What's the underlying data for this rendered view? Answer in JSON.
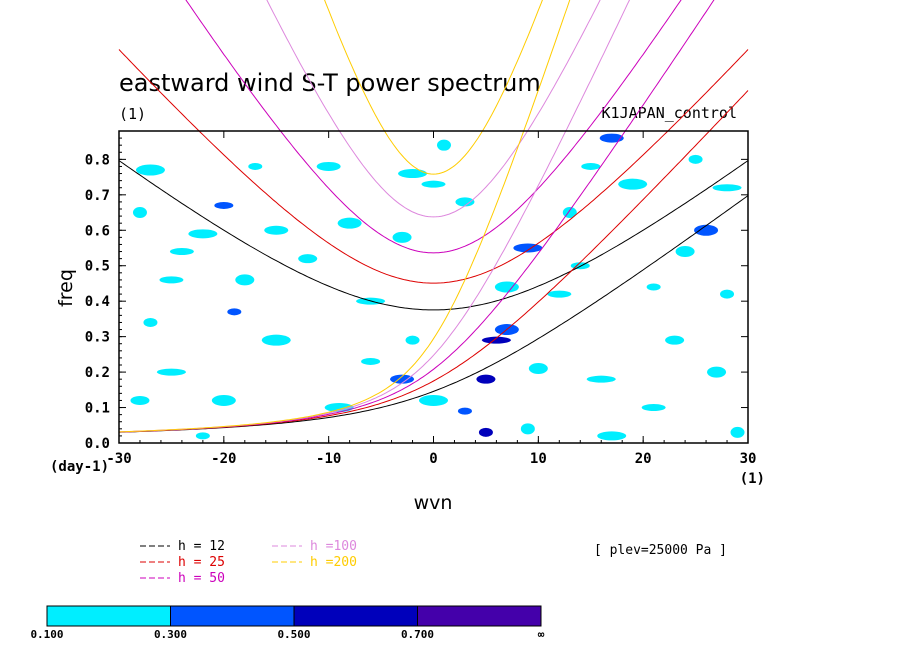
{
  "chart_data": {
    "type": "heatmap",
    "title": "eastward wind S-T power spectrum",
    "subtitle_left": "(1)",
    "subtitle_right": "K1JAPAN_control",
    "xlabel": "wvn",
    "ylabel": "freq",
    "x_unit": "(1)",
    "y_unit": "(day-1)",
    "xlim": [
      -30,
      30
    ],
    "ylim": [
      0,
      0.88
    ],
    "xticks": [
      -30,
      -20,
      -10,
      0,
      10,
      20,
      30
    ],
    "yticks": [
      0.0,
      0.1,
      0.2,
      0.3,
      0.4,
      0.5,
      0.6,
      0.7,
      0.8
    ],
    "ytick_labels": [
      "0.0",
      "0.1",
      "0.2",
      "0.3",
      "0.4",
      "0.5",
      "0.6",
      "0.7",
      "0.8"
    ],
    "annotation": "[ plev=25000 Pa ]",
    "dispersion_curves": [
      {
        "label": "h = 12",
        "h": 12,
        "color": "#000000"
      },
      {
        "label": "h = 25",
        "h": 25,
        "color": "#dd0000"
      },
      {
        "label": "h = 50",
        "h": 50,
        "color": "#cc00bb"
      },
      {
        "label": "h =100",
        "h": 100,
        "color": "#dd88dd"
      },
      {
        "label": "h =200",
        "h": 200,
        "color": "#ffcc00"
      }
    ],
    "shading": {
      "levels": [
        0.1,
        0.3,
        0.5,
        0.7
      ],
      "level_labels": [
        "0.100",
        "0.300",
        "0.500",
        "0.700",
        "∞"
      ],
      "colors": [
        "#00eeff",
        "#0055ff",
        "#0000bb",
        "#4400aa"
      ],
      "contours": [
        {
          "x": -22,
          "y": 0.02,
          "level": 0
        },
        {
          "x": -28,
          "y": 0.12,
          "level": 0
        },
        {
          "x": -20,
          "y": 0.12,
          "level": 0
        },
        {
          "x": -25,
          "y": 0.2,
          "level": 0
        },
        {
          "x": -27,
          "y": 0.34,
          "level": 0
        },
        {
          "x": -18,
          "y": 0.46,
          "level": 0
        },
        {
          "x": -25,
          "y": 0.46,
          "level": 0
        },
        {
          "x": -22,
          "y": 0.59,
          "level": 0
        },
        {
          "x": -28,
          "y": 0.65,
          "level": 0
        },
        {
          "x": -20,
          "y": 0.67,
          "level": 1
        },
        {
          "x": -15,
          "y": 0.6,
          "level": 0
        },
        {
          "x": -27,
          "y": 0.77,
          "level": 0
        },
        {
          "x": -17,
          "y": 0.78,
          "level": 0
        },
        {
          "x": -12,
          "y": 0.52,
          "level": 0
        },
        {
          "x": -8,
          "y": 0.62,
          "level": 0
        },
        {
          "x": -6,
          "y": 0.4,
          "level": 0
        },
        {
          "x": -2,
          "y": 0.29,
          "level": 0
        },
        {
          "x": -3,
          "y": 0.58,
          "level": 0
        },
        {
          "x": 0,
          "y": 0.73,
          "level": 0
        },
        {
          "x": -2,
          "y": 0.76,
          "level": 0
        },
        {
          "x": 1,
          "y": 0.84,
          "level": 0
        },
        {
          "x": -6,
          "y": 0.23,
          "level": 0
        },
        {
          "x": -3,
          "y": 0.18,
          "level": 1
        },
        {
          "x": 0,
          "y": 0.12,
          "level": 0
        },
        {
          "x": 3,
          "y": 0.09,
          "level": 1
        },
        {
          "x": 5,
          "y": 0.18,
          "level": 2
        },
        {
          "x": 7,
          "y": 0.32,
          "level": 1
        },
        {
          "x": 6,
          "y": 0.29,
          "level": 2
        },
        {
          "x": 5,
          "y": 0.03,
          "level": 2
        },
        {
          "x": 10,
          "y": 0.21,
          "level": 0
        },
        {
          "x": 12,
          "y": 0.42,
          "level": 0
        },
        {
          "x": 9,
          "y": 0.55,
          "level": 1
        },
        {
          "x": 13,
          "y": 0.65,
          "level": 0
        },
        {
          "x": 15,
          "y": 0.78,
          "level": 0
        },
        {
          "x": 17,
          "y": 0.86,
          "level": 1
        },
        {
          "x": 19,
          "y": 0.73,
          "level": 0
        },
        {
          "x": 21,
          "y": 0.44,
          "level": 0
        },
        {
          "x": 23,
          "y": 0.29,
          "level": 0
        },
        {
          "x": 26,
          "y": 0.6,
          "level": 1
        },
        {
          "x": 28,
          "y": 0.72,
          "level": 0
        },
        {
          "x": 25,
          "y": 0.8,
          "level": 0
        },
        {
          "x": 27,
          "y": 0.2,
          "level": 0
        },
        {
          "x": 21,
          "y": 0.1,
          "level": 0
        },
        {
          "x": 17,
          "y": 0.02,
          "level": 0
        },
        {
          "x": 29,
          "y": 0.03,
          "level": 0
        },
        {
          "x": 14,
          "y": 0.5,
          "level": 0
        },
        {
          "x": -10,
          "y": 0.78,
          "level": 0
        },
        {
          "x": -15,
          "y": 0.29,
          "level": 0
        },
        {
          "x": -19,
          "y": 0.37,
          "level": 1
        },
        {
          "x": 3,
          "y": 0.68,
          "level": 0
        },
        {
          "x": 7,
          "y": 0.44,
          "level": 0
        },
        {
          "x": 16,
          "y": 0.18,
          "level": 0
        },
        {
          "x": 28,
          "y": 0.42,
          "level": 0
        },
        {
          "x": 24,
          "y": 0.54,
          "level": 0
        },
        {
          "x": -24,
          "y": 0.54,
          "level": 0
        },
        {
          "x": -9,
          "y": 0.1,
          "level": 0
        },
        {
          "x": 9,
          "y": 0.04,
          "level": 0
        }
      ]
    }
  }
}
